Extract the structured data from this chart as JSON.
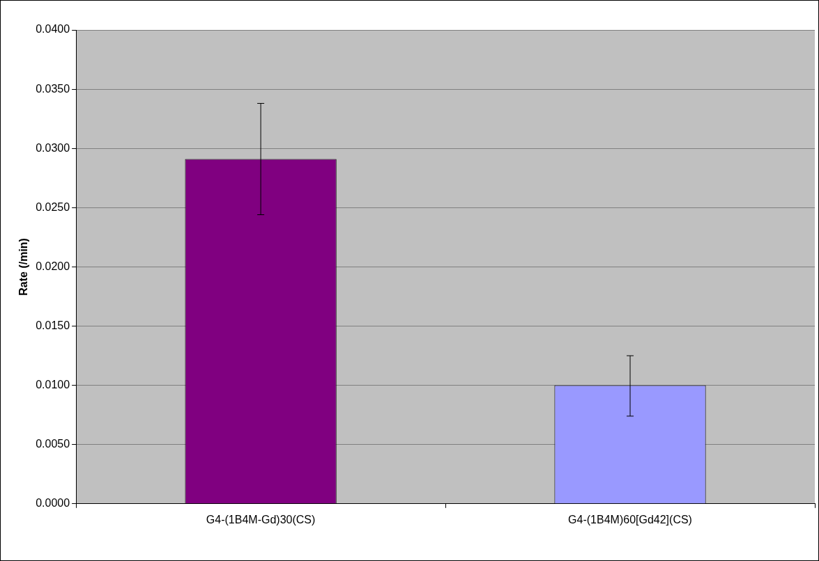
{
  "chart_data": {
    "type": "bar",
    "ylabel": "Rate (/min)",
    "categories": [
      "G4-(1B4M-Gd)30(CS)",
      "G4-(1B4M)60[Gd42](CS)"
    ],
    "values": [
      0.0291,
      0.01
    ],
    "colors": [
      "#800080",
      "#9999ff"
    ],
    "errors": [
      [
        0.0244,
        0.0338
      ],
      [
        0.0074,
        0.0125
      ]
    ],
    "ylim": [
      0,
      0.04
    ],
    "yticks": [
      {
        "value": 0,
        "label": "0.0000"
      },
      {
        "value": 0.005,
        "label": "0.0050"
      },
      {
        "value": 0.01,
        "label": "0.0100"
      },
      {
        "value": 0.015,
        "label": "0.0150"
      },
      {
        "value": 0.02,
        "label": "0.0200"
      },
      {
        "value": 0.025,
        "label": "0.0250"
      },
      {
        "value": 0.03,
        "label": "0.0300"
      },
      {
        "value": 0.035,
        "label": "0.0350"
      },
      {
        "value": 0.04,
        "label": "0.0400"
      }
    ],
    "grid": "y",
    "legend": false
  }
}
